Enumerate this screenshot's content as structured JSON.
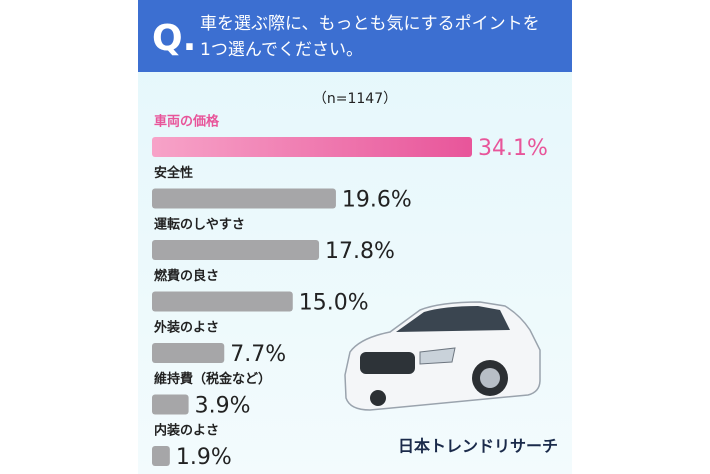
{
  "chart_data": {
    "type": "hbar",
    "question_mark": "Q.",
    "title_lines": [
      "車を選ぶ際に、もっとも気にするポイントを",
      "1つ選んでください。"
    ],
    "subtitle": "（n=1147）",
    "categories": [
      "車両の価格",
      "安全性",
      "運転のしやすさ",
      "燃費の良さ",
      "外装のよさ",
      "維持費（税金など）",
      "内装のよさ"
    ],
    "values": [
      34.1,
      19.6,
      17.8,
      15.0,
      7.7,
      3.9,
      1.9
    ],
    "value_labels": [
      "34.1%",
      "19.6%",
      "17.8%",
      "15.0%",
      "7.7%",
      "3.9%",
      "1.9%"
    ],
    "colors": [
      "#e8559a",
      "#a6a6a8",
      "#a6a6a8",
      "#a6a6a8",
      "#a6a6a8",
      "#a6a6a8",
      "#a6a6a8"
    ],
    "label_colors": [
      "#e8559a",
      "#222222",
      "#222222",
      "#222222",
      "#222222",
      "#222222",
      "#222222"
    ],
    "source": "日本トレンドリサーチ"
  }
}
